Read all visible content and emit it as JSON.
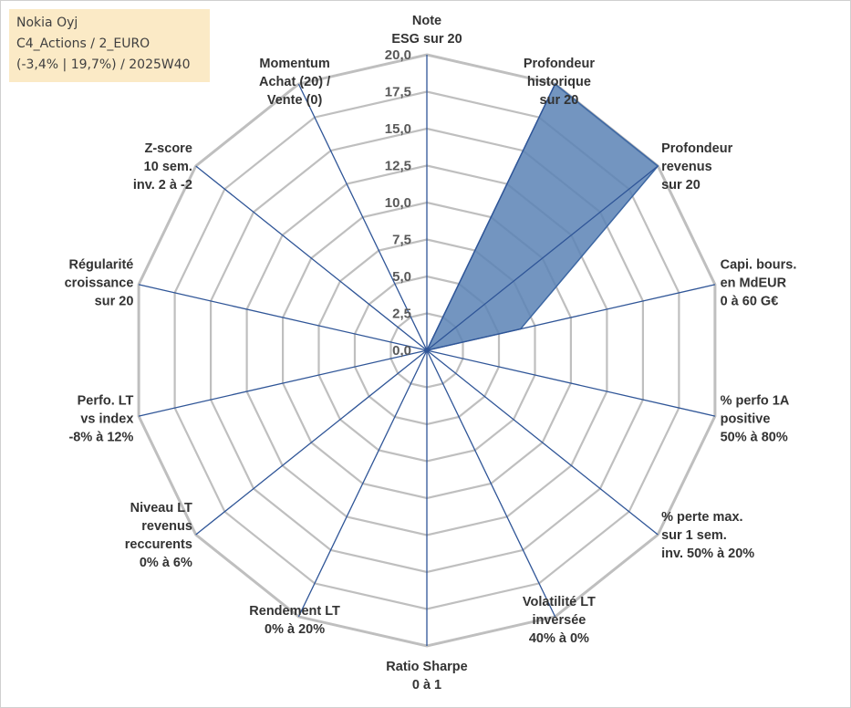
{
  "info": {
    "line1": "Nokia Oyj",
    "line2": "C4_Actions / 2_EURO",
    "line3": "(-3,4% | 19,7%) / 2025W40"
  },
  "chart_data": {
    "type": "radar",
    "title": "Nokia Oyj",
    "rlim": [
      0,
      20
    ],
    "ticks": [
      "0,0",
      "2,5",
      "5,0",
      "7,5",
      "10,0",
      "12,5",
      "15,0",
      "17,5",
      "20,0"
    ],
    "axes": [
      [
        "Note",
        "ESG sur 20"
      ],
      [
        "Profondeur",
        "historique",
        "sur 20"
      ],
      [
        "Profondeur",
        "revenus",
        "sur 20"
      ],
      [
        "Capi. bours.",
        "en MdEUR",
        "0 à 60 G€"
      ],
      [
        "% perfo 1A",
        "positive",
        "50% à 80%"
      ],
      [
        "% perte max.",
        "sur 1 sem.",
        "inv. 50% à 20%"
      ],
      [
        "Volatilité LT",
        "inversée",
        "40% à 0%"
      ],
      [
        "Ratio Sharpe",
        "0 à 1"
      ],
      [
        "Rendement LT",
        "0% à 20%"
      ],
      [
        "Niveau LT",
        "revenus",
        "reccurents",
        "0% à 6%"
      ],
      [
        "Perfo. LT",
        "vs index",
        "-8% à 12%"
      ],
      [
        "Régularité",
        "croissance",
        "sur 20"
      ],
      [
        "Z-score",
        "10 sem.",
        "inv. 2 à -2"
      ],
      [
        "Momentum",
        "Achat (20) /",
        "Vente (0)"
      ]
    ],
    "series": [
      {
        "name": "Nokia Oyj",
        "values": [
          0,
          20,
          20,
          6.5,
          0,
          0,
          0,
          0,
          0,
          0,
          0,
          0,
          0,
          0
        ]
      }
    ],
    "colors": {
      "fill": "#5b82b5",
      "stroke": "#3d67a3",
      "spoke": "#2f5597",
      "grid": "#bfbfbf"
    }
  }
}
